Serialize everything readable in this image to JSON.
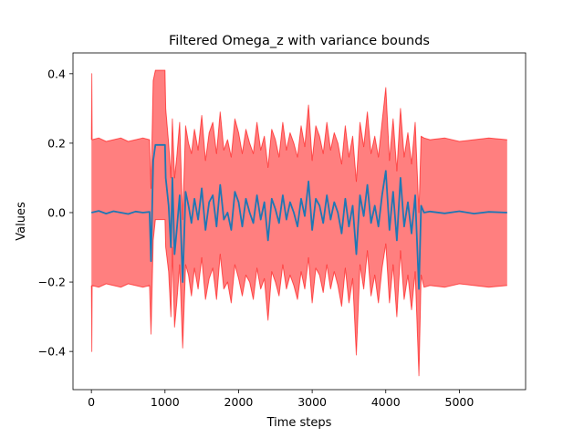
{
  "chart_data": {
    "type": "line",
    "title": "Filtered Omega_z with variance bounds",
    "xlabel": "Time steps",
    "ylabel": "Values",
    "xlim": [
      -250,
      5900
    ],
    "ylim": [
      -0.51,
      0.46
    ],
    "xticks": [
      0,
      1000,
      2000,
      3000,
      4000,
      5000
    ],
    "xtick_labels": [
      "0",
      "1000",
      "2000",
      "3000",
      "4000",
      "5000"
    ],
    "yticks": [
      -0.4,
      -0.2,
      0.0,
      0.2,
      0.4
    ],
    "ytick_labels": [
      "−0.4",
      "−0.2",
      "0.0",
      "0.2",
      "0.4"
    ],
    "grid": false,
    "series": [
      {
        "role": "mean",
        "color": "#1f77b4",
        "x": [
          0,
          100,
          200,
          300,
          400,
          500,
          600,
          700,
          790,
          810,
          840,
          870,
          900,
          950,
          1000,
          1010,
          1050,
          1080,
          1100,
          1130,
          1160,
          1200,
          1240,
          1280,
          1320,
          1360,
          1400,
          1450,
          1500,
          1550,
          1600,
          1650,
          1700,
          1750,
          1800,
          1850,
          1900,
          1950,
          2000,
          2050,
          2100,
          2150,
          2200,
          2250,
          2300,
          2350,
          2400,
          2450,
          2500,
          2550,
          2600,
          2650,
          2700,
          2750,
          2800,
          2850,
          2900,
          2950,
          3000,
          3050,
          3100,
          3150,
          3200,
          3250,
          3300,
          3350,
          3400,
          3450,
          3500,
          3550,
          3600,
          3650,
          3700,
          3750,
          3800,
          3850,
          3900,
          3950,
          4000,
          4050,
          4100,
          4150,
          4200,
          4250,
          4300,
          4350,
          4400,
          4450,
          4480,
          4520,
          4600,
          4800,
          5000,
          5200,
          5400,
          5650
        ],
        "y": [
          0.0,
          0.005,
          -0.003,
          0.004,
          0.0,
          -0.004,
          0.003,
          0.0,
          0.002,
          -0.14,
          0.15,
          0.195,
          0.195,
          0.195,
          0.195,
          0.1,
          0.02,
          -0.1,
          0.1,
          -0.12,
          -0.05,
          0.05,
          -0.2,
          0.06,
          0.02,
          -0.03,
          0.04,
          -0.02,
          0.07,
          -0.05,
          0.03,
          0.05,
          -0.04,
          0.08,
          -0.02,
          0.0,
          -0.05,
          0.06,
          0.03,
          -0.04,
          0.04,
          0.0,
          -0.03,
          0.05,
          -0.02,
          0.03,
          -0.08,
          0.04,
          0.01,
          -0.03,
          0.05,
          -0.02,
          0.03,
          0.0,
          -0.04,
          0.04,
          -0.01,
          0.09,
          -0.05,
          0.04,
          0.02,
          -0.03,
          0.05,
          -0.02,
          0.03,
          0.0,
          -0.06,
          0.04,
          -0.04,
          0.02,
          -0.12,
          0.05,
          -0.01,
          0.08,
          -0.03,
          0.02,
          -0.04,
          0.05,
          0.12,
          -0.05,
          0.06,
          -0.08,
          0.1,
          -0.04,
          0.03,
          -0.06,
          0.05,
          -0.22,
          0.02,
          0.0,
          0.003,
          -0.002,
          0.004,
          -0.003,
          0.002,
          0.0
        ]
      },
      {
        "role": "upper-bound",
        "color": "#ff0000",
        "x": [
          0,
          5,
          10,
          100,
          200,
          300,
          400,
          500,
          600,
          700,
          790,
          810,
          840,
          870,
          900,
          950,
          1000,
          1010,
          1050,
          1080,
          1100,
          1130,
          1160,
          1200,
          1240,
          1280,
          1320,
          1360,
          1400,
          1450,
          1500,
          1550,
          1600,
          1650,
          1700,
          1750,
          1800,
          1850,
          1900,
          1950,
          2000,
          2050,
          2100,
          2150,
          2200,
          2250,
          2300,
          2350,
          2400,
          2450,
          2500,
          2550,
          2600,
          2650,
          2700,
          2750,
          2800,
          2850,
          2900,
          2950,
          3000,
          3050,
          3100,
          3150,
          3200,
          3250,
          3300,
          3350,
          3400,
          3450,
          3500,
          3550,
          3600,
          3650,
          3700,
          3750,
          3800,
          3850,
          3900,
          3950,
          4000,
          4050,
          4100,
          4150,
          4200,
          4250,
          4300,
          4350,
          4400,
          4450,
          4480,
          4520,
          4600,
          4800,
          5000,
          5200,
          5400,
          5650
        ],
        "y": [
          0.21,
          0.4,
          0.21,
          0.215,
          0.205,
          0.21,
          0.215,
          0.205,
          0.21,
          0.215,
          0.21,
          0.07,
          0.38,
          0.41,
          0.41,
          0.41,
          0.41,
          0.3,
          0.2,
          0.1,
          0.27,
          0.1,
          0.16,
          0.26,
          -0.02,
          0.25,
          0.2,
          0.17,
          0.24,
          0.18,
          0.28,
          0.15,
          0.23,
          0.26,
          0.17,
          0.29,
          0.18,
          0.21,
          0.16,
          0.27,
          0.23,
          0.17,
          0.24,
          0.2,
          0.17,
          0.26,
          0.18,
          0.22,
          0.13,
          0.24,
          0.21,
          0.16,
          0.26,
          0.18,
          0.23,
          0.2,
          0.16,
          0.25,
          0.19,
          0.31,
          0.15,
          0.25,
          0.22,
          0.17,
          0.26,
          0.18,
          0.23,
          0.2,
          0.14,
          0.25,
          0.16,
          0.22,
          0.09,
          0.26,
          0.19,
          0.29,
          0.17,
          0.22,
          0.16,
          0.26,
          0.36,
          0.15,
          0.27,
          0.12,
          0.3,
          0.16,
          0.23,
          0.14,
          0.26,
          0.0,
          0.22,
          0.215,
          0.21,
          0.215,
          0.205,
          0.21,
          0.215,
          0.21
        ]
      },
      {
        "role": "lower-bound",
        "color": "#ff0000",
        "x": [
          0,
          5,
          10,
          100,
          200,
          300,
          400,
          500,
          600,
          700,
          790,
          810,
          840,
          870,
          900,
          950,
          1000,
          1010,
          1050,
          1080,
          1100,
          1130,
          1160,
          1200,
          1240,
          1280,
          1320,
          1360,
          1400,
          1450,
          1500,
          1550,
          1600,
          1650,
          1700,
          1750,
          1800,
          1850,
          1900,
          1950,
          2000,
          2050,
          2100,
          2150,
          2200,
          2250,
          2300,
          2350,
          2400,
          2450,
          2500,
          2550,
          2600,
          2650,
          2700,
          2750,
          2800,
          2850,
          2900,
          2950,
          3000,
          3050,
          3100,
          3150,
          3200,
          3250,
          3300,
          3350,
          3400,
          3450,
          3500,
          3550,
          3600,
          3650,
          3700,
          3750,
          3800,
          3850,
          3900,
          3950,
          4000,
          4050,
          4100,
          4150,
          4200,
          4250,
          4300,
          4350,
          4400,
          4450,
          4480,
          4520,
          4600,
          4800,
          5000,
          5200,
          5400,
          5650
        ],
        "y": [
          -0.21,
          -0.4,
          -0.21,
          -0.215,
          -0.205,
          -0.21,
          -0.215,
          -0.205,
          -0.21,
          -0.215,
          -0.21,
          -0.35,
          -0.08,
          -0.02,
          -0.02,
          -0.02,
          -0.02,
          -0.1,
          -0.17,
          -0.3,
          -0.1,
          -0.33,
          -0.26,
          -0.15,
          -0.39,
          -0.15,
          -0.18,
          -0.24,
          -0.16,
          -0.22,
          -0.13,
          -0.25,
          -0.19,
          -0.16,
          -0.25,
          -0.12,
          -0.22,
          -0.2,
          -0.26,
          -0.15,
          -0.19,
          -0.24,
          -0.18,
          -0.2,
          -0.25,
          -0.16,
          -0.22,
          -0.19,
          -0.31,
          -0.17,
          -0.2,
          -0.24,
          -0.15,
          -0.22,
          -0.18,
          -0.21,
          -0.25,
          -0.17,
          -0.22,
          -0.13,
          -0.26,
          -0.16,
          -0.18,
          -0.23,
          -0.15,
          -0.22,
          -0.17,
          -0.21,
          -0.27,
          -0.16,
          -0.26,
          -0.19,
          -0.41,
          -0.15,
          -0.22,
          -0.11,
          -0.24,
          -0.18,
          -0.26,
          -0.16,
          -0.09,
          -0.26,
          -0.15,
          -0.3,
          -0.11,
          -0.25,
          -0.18,
          -0.28,
          -0.17,
          -0.47,
          -0.18,
          -0.215,
          -0.21,
          -0.215,
          -0.205,
          -0.21,
          -0.215,
          -0.21
        ]
      }
    ]
  }
}
